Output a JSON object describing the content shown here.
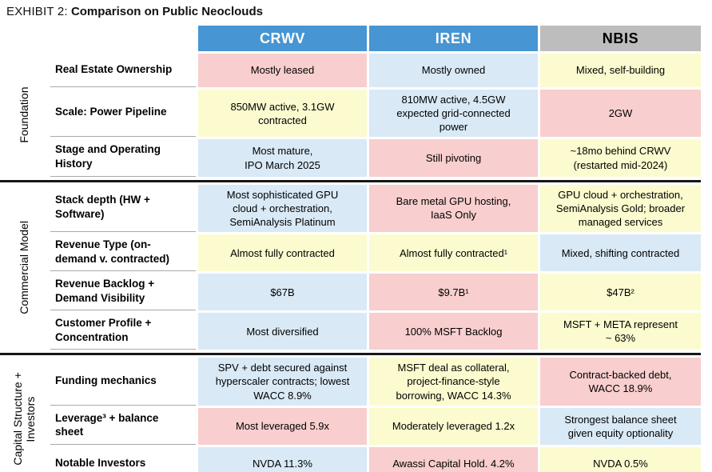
{
  "title": {
    "prefix": "EXHIBIT 2:",
    "main": "Comparison on Public Neoclouds"
  },
  "colors": {
    "pink": "#F8CECE",
    "blue": "#D9E9F6",
    "yellow": "#FBFBCF",
    "header_blue": "#4795D2",
    "header_gray": "#BDBDBD",
    "section_divider": "#161616"
  },
  "columns": [
    {
      "label": "CRWV",
      "header_bg": "#4795D2",
      "header_text": "#FFFFFF"
    },
    {
      "label": "IREN",
      "header_bg": "#4795D2",
      "header_text": "#FFFFFF"
    },
    {
      "label": "NBIS",
      "header_bg": "#BDBDBD",
      "header_text": "#000000"
    }
  ],
  "sections": [
    {
      "label": "Foundation",
      "rows": [
        {
          "label": "Real Estate Ownership",
          "cells": [
            {
              "text": "Mostly leased",
              "color": "pink"
            },
            {
              "text": "Mostly owned",
              "color": "blue"
            },
            {
              "text": "Mixed, self-building",
              "color": "yellow"
            }
          ]
        },
        {
          "label": "Scale: Power Pipeline",
          "cells": [
            {
              "text": "850MW active, 3.1GW\ncontracted",
              "color": "yellow"
            },
            {
              "text": "810MW active, 4.5GW\nexpected grid-connected\npower",
              "color": "blue"
            },
            {
              "text": "2GW",
              "color": "pink"
            }
          ]
        },
        {
          "label": "Stage and Operating\nHistory",
          "cells": [
            {
              "text": "Most mature,\nIPO March 2025",
              "color": "blue"
            },
            {
              "text": "Still pivoting",
              "color": "pink"
            },
            {
              "text": "~18mo behind CRWV\n(restarted mid-2024)",
              "color": "yellow"
            }
          ]
        }
      ]
    },
    {
      "label": "Commercial Model",
      "rows": [
        {
          "label": "Stack depth (HW +\nSoftware)",
          "cells": [
            {
              "text": "Most sophisticated GPU\ncloud + orchestration,\nSemiAnalysis Platinum",
              "color": "blue"
            },
            {
              "text": "Bare metal GPU hosting,\nIaaS Only",
              "color": "pink"
            },
            {
              "text": "GPU cloud + orchestration,\nSemiAnalysis Gold; broader\nmanaged services",
              "color": "yellow"
            }
          ]
        },
        {
          "label": "Revenue Type (on-\ndemand v. contracted)",
          "cells": [
            {
              "text": "Almost fully contracted",
              "color": "yellow"
            },
            {
              "text": "Almost fully contracted¹",
              "color": "yellow"
            },
            {
              "text": "Mixed, shifting contracted",
              "color": "blue"
            }
          ]
        },
        {
          "label": "Revenue Backlog +\nDemand Visibility",
          "cells": [
            {
              "text": "$67B",
              "color": "blue"
            },
            {
              "text": "$9.7B¹",
              "color": "pink"
            },
            {
              "text": "$47B²",
              "color": "yellow"
            }
          ]
        },
        {
          "label": "Customer Profile +\nConcentration",
          "cells": [
            {
              "text": "Most diversified",
              "color": "blue"
            },
            {
              "text": "100% MSFT Backlog",
              "color": "pink"
            },
            {
              "text": "MSFT + META represent\n~ 63%",
              "color": "yellow"
            }
          ]
        }
      ]
    },
    {
      "label": "Capital Structure +\nInvestors",
      "rows": [
        {
          "label": "Funding mechanics",
          "cells": [
            {
              "text": "SPV + debt secured against\nhyperscaler contracts; lowest\nWACC 8.9%",
              "color": "blue"
            },
            {
              "text": "MSFT deal as collateral,\nproject-finance-style\nborrowing, WACC 14.3%",
              "color": "yellow"
            },
            {
              "text": "Contract-backed debt,\nWACC 18.9%",
              "color": "pink"
            }
          ]
        },
        {
          "label": "Leverage³ + balance\nsheet",
          "cells": [
            {
              "text": "Most leveraged 5.9x",
              "color": "pink"
            },
            {
              "text": "Moderately leveraged 1.2x",
              "color": "yellow"
            },
            {
              "text": "Strongest balance sheet\ngiven equity optionality",
              "color": "blue"
            }
          ]
        },
        {
          "label": "Notable Investors",
          "cells": [
            {
              "text": "NVDA 11.3%",
              "color": "blue"
            },
            {
              "text": "Awassi Capital Hold. 4.2%",
              "color": "pink"
            },
            {
              "text": "NVDA 0.5%",
              "color": "yellow"
            }
          ]
        }
      ]
    }
  ]
}
